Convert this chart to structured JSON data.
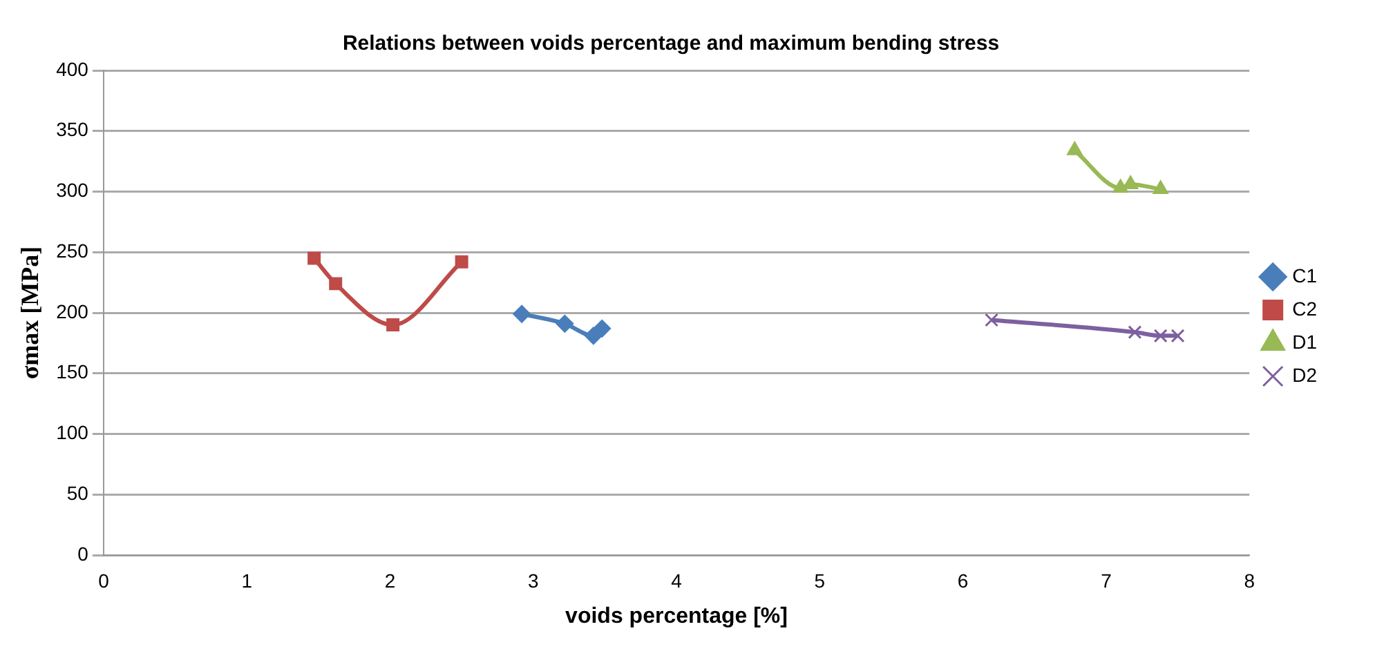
{
  "chart_data": {
    "type": "line",
    "title": "Relations between voids percentage and maximum bending stress",
    "xlabel": "voids percentage [%]",
    "ylabel": "σmax [MPa]",
    "xlim": [
      0,
      8
    ],
    "xticks": [
      0,
      1,
      2,
      3,
      4,
      5,
      6,
      7,
      8
    ],
    "ylim": [
      0,
      400
    ],
    "yticks": [
      0,
      50,
      100,
      150,
      200,
      250,
      300,
      350,
      400
    ],
    "grid": "y",
    "legend": "right",
    "series": [
      {
        "name": "C1",
        "color": "#4a7ebb",
        "marker": "diamond",
        "x": [
          2.92,
          3.22,
          3.42,
          3.48
        ],
        "values": [
          199,
          191,
          181,
          187
        ]
      },
      {
        "name": "C2",
        "color": "#be4b48",
        "marker": "square",
        "x": [
          1.47,
          1.62,
          2.02,
          2.5
        ],
        "values": [
          245,
          224,
          190,
          242
        ]
      },
      {
        "name": "D1",
        "color": "#98b954",
        "marker": "triangle",
        "x": [
          6.78,
          7.1,
          7.17,
          7.38
        ],
        "values": [
          334,
          303,
          306,
          302
        ]
      },
      {
        "name": "D2",
        "color": "#7d60a0",
        "marker": "cross",
        "x": [
          6.2,
          7.2,
          7.38,
          7.5
        ],
        "values": [
          194,
          184,
          181,
          181
        ]
      }
    ]
  }
}
